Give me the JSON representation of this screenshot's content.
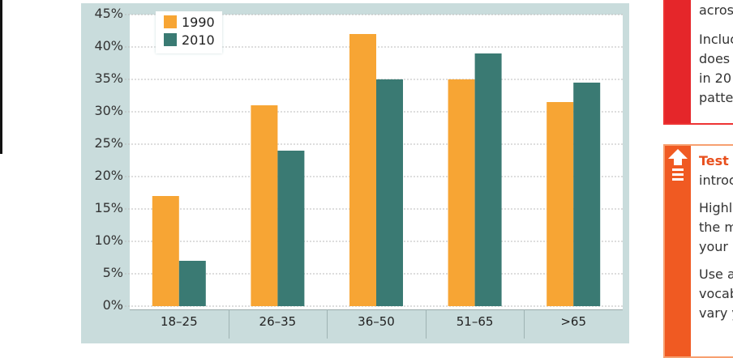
{
  "chart_data": {
    "type": "bar",
    "categories": [
      "18–25",
      "26–35",
      "36–50",
      "51–65",
      ">65"
    ],
    "series": [
      {
        "name": "1990",
        "color": "#f7a534",
        "values": [
          17,
          31,
          42,
          35,
          31.5
        ]
      },
      {
        "name": "2010",
        "color": "#3a7a73",
        "values": [
          7,
          24,
          35,
          39,
          34.5
        ]
      }
    ],
    "yticks": [
      "0%",
      "5%",
      "10%",
      "15%",
      "20%",
      "25%",
      "30%",
      "35%",
      "40%",
      "45%"
    ],
    "ylim": [
      0,
      45
    ],
    "grid": true,
    "legend": "top-left",
    "title": "",
    "xlabel": "",
    "ylabel": ""
  },
  "sidebar": {
    "box1": {
      "lines": [
        "acros",
        "Incluc",
        "does",
        "in 20",
        "patte"
      ]
    },
    "box2": {
      "heading": "Test",
      "lines": [
        "introc",
        "Highl",
        "the m",
        "your c",
        "Use a",
        "vocab",
        "vary y"
      ]
    }
  }
}
